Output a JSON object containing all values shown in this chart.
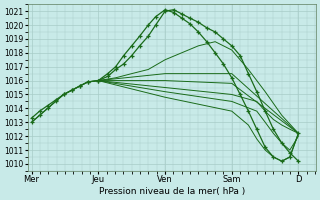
{
  "title": "",
  "xlabel": "Pression niveau de la mer( hPa )",
  "ylabel": "",
  "bg_color": "#c8eae8",
  "grid_color": "#a8ccc8",
  "line_color": "#1a6b1a",
  "marker_color": "#1a6b1a",
  "ylim": [
    1009.5,
    1021.5
  ],
  "yticks": [
    1010,
    1011,
    1012,
    1013,
    1014,
    1015,
    1016,
    1017,
    1018,
    1019,
    1020,
    1021
  ],
  "day_labels": [
    "Mer",
    "Jeu",
    "Ven",
    "Sam",
    "D"
  ],
  "day_positions": [
    0,
    0.333,
    0.667,
    1.0,
    1.333
  ],
  "xlim": [
    -0.02,
    1.42
  ],
  "series": [
    {
      "x": [
        0.0,
        0.04,
        0.08,
        0.12,
        0.16,
        0.2,
        0.24,
        0.28,
        0.333,
        0.38,
        0.42,
        0.46,
        0.5,
        0.54,
        0.583,
        0.62,
        0.667,
        0.71,
        0.75,
        0.79,
        0.833,
        0.875,
        0.917,
        0.958,
        1.0,
        1.042,
        1.083,
        1.125,
        1.167,
        1.208,
        1.25,
        1.29,
        1.333
      ],
      "y": [
        1013.0,
        1013.5,
        1014.0,
        1014.5,
        1015.0,
        1015.3,
        1015.6,
        1015.9,
        1016.0,
        1016.3,
        1016.8,
        1017.2,
        1017.8,
        1018.5,
        1019.2,
        1020.0,
        1021.0,
        1021.1,
        1020.8,
        1020.5,
        1020.2,
        1019.8,
        1019.5,
        1019.0,
        1018.5,
        1017.8,
        1016.5,
        1015.2,
        1013.8,
        1012.5,
        1011.5,
        1010.8,
        1010.2
      ],
      "marker": true
    },
    {
      "x": [
        0.0,
        0.04,
        0.08,
        0.12,
        0.16,
        0.2,
        0.24,
        0.28,
        0.333,
        0.42,
        0.5,
        0.583,
        0.667,
        0.75,
        0.833,
        0.917,
        1.0,
        1.083,
        1.167,
        1.25,
        1.333
      ],
      "y": [
        1013.0,
        1013.5,
        1014.0,
        1014.5,
        1015.0,
        1015.3,
        1015.6,
        1015.9,
        1016.0,
        1016.2,
        1016.5,
        1016.8,
        1017.5,
        1018.0,
        1018.5,
        1018.8,
        1018.2,
        1016.8,
        1015.2,
        1013.5,
        1012.2
      ],
      "marker": false
    },
    {
      "x": [
        0.333,
        0.667,
        1.0,
        1.333
      ],
      "y": [
        1016.0,
        1016.5,
        1016.5,
        1012.2
      ],
      "marker": false
    },
    {
      "x": [
        0.333,
        0.667,
        1.0,
        1.333
      ],
      "y": [
        1016.0,
        1016.0,
        1015.8,
        1012.2
      ],
      "marker": false
    },
    {
      "x": [
        0.333,
        0.667,
        1.0,
        1.125,
        1.167,
        1.208,
        1.25,
        1.29,
        1.333
      ],
      "y": [
        1016.0,
        1015.5,
        1015.0,
        1014.5,
        1013.8,
        1013.2,
        1012.8,
        1012.5,
        1012.2
      ],
      "marker": false
    },
    {
      "x": [
        0.333,
        0.667,
        1.0,
        1.125,
        1.167,
        1.208,
        1.25,
        1.29,
        1.333
      ],
      "y": [
        1016.0,
        1015.2,
        1014.5,
        1013.8,
        1013.0,
        1012.2,
        1011.5,
        1011.0,
        1012.0
      ],
      "marker": false
    },
    {
      "x": [
        0.333,
        0.667,
        1.0,
        1.083,
        1.125,
        1.167,
        1.208,
        1.25,
        1.29,
        1.333
      ],
      "y": [
        1016.0,
        1014.8,
        1013.8,
        1012.8,
        1011.8,
        1011.0,
        1010.5,
        1010.2,
        1010.5,
        1012.2
      ],
      "marker": false
    },
    {
      "x": [
        0.0,
        0.04,
        0.08,
        0.12,
        0.16,
        0.2,
        0.24,
        0.28,
        0.333,
        0.38,
        0.42,
        0.46,
        0.5,
        0.54,
        0.583,
        0.62,
        0.667,
        0.71,
        0.75,
        0.79,
        0.833,
        0.875,
        0.917,
        0.958,
        1.0,
        1.042,
        1.083,
        1.125,
        1.167,
        1.208,
        1.25,
        1.29,
        1.333
      ],
      "y": [
        1013.3,
        1013.8,
        1014.2,
        1014.6,
        1015.0,
        1015.3,
        1015.6,
        1015.9,
        1016.0,
        1016.5,
        1017.0,
        1017.8,
        1018.5,
        1019.2,
        1020.0,
        1020.6,
        1021.1,
        1020.9,
        1020.5,
        1020.1,
        1019.5,
        1018.8,
        1018.0,
        1017.2,
        1016.2,
        1015.0,
        1013.8,
        1012.5,
        1011.2,
        1010.5,
        1010.2,
        1010.5,
        1012.2
      ],
      "marker": true
    }
  ]
}
